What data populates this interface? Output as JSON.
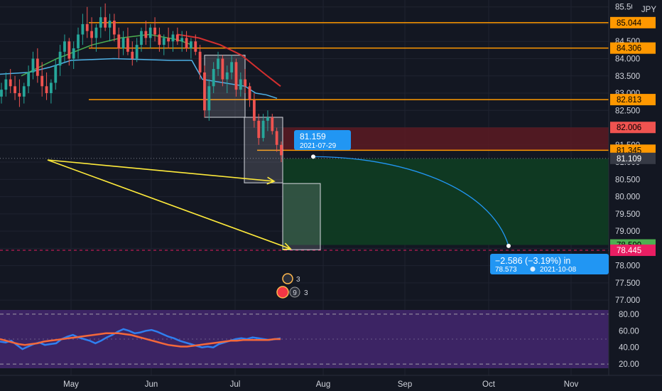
{
  "currency_label": "JPY",
  "colors": {
    "background": "#131722",
    "up_candle": "#26a69a",
    "down_candle": "#ef5350",
    "orange_level": "#ff9800",
    "stop_zone": "#5c1a22",
    "target_zone": "#0f3b23",
    "rsi_panel": "#3c2464",
    "cyan_line": "#4fb3e8",
    "red_ma": "#d32f2f",
    "green_ma": "#4caf50",
    "arrows": "#ffeb3b",
    "projection": "#2196f3",
    "rsi_blue": "#2f7ff0",
    "rsi_orange": "#f4683a"
  },
  "chart_data": {
    "type": "candlestick",
    "price_axis_ticks": [
      "85.500",
      "85.000",
      "84.500",
      "84.000",
      "83.500",
      "83.000",
      "82.500",
      "82.000",
      "81.500",
      "81.000",
      "80.500",
      "80.000",
      "79.500",
      "79.000",
      "78.500",
      "78.000",
      "77.500",
      "77.000"
    ],
    "price_range": [
      76.9,
      85.7
    ],
    "x_axis_labels": [
      "May",
      "Jun",
      "Jul",
      "Aug",
      "Sep",
      "Oct",
      "Nov"
    ],
    "horizontal_levels": [
      85.044,
      84.306,
      82.813,
      81.345
    ],
    "price_badges": [
      {
        "label": "85.044",
        "value": 85.044,
        "color": "#ff9800",
        "text_color": "#000000"
      },
      {
        "label": "84.306",
        "value": 84.306,
        "color": "#ff9800",
        "text_color": "#000000"
      },
      {
        "label": "82.813",
        "value": 82.813,
        "color": "#ff9800",
        "text_color": "#000000"
      },
      {
        "label": "82.006",
        "value": 82.006,
        "color": "#ef5350",
        "text_color": "#000000"
      },
      {
        "label": "81.345",
        "value": 81.345,
        "color": "#ff9800",
        "text_color": "#000000"
      },
      {
        "label": "81.109",
        "value": 81.109,
        "color": "#363a45",
        "text_color": "#ffffff"
      },
      {
        "label": "78.599",
        "value": 78.599,
        "color": "#4caf50",
        "text_color": "#000000"
      },
      {
        "label": "78.445",
        "value": 78.445,
        "color": "#e91e63",
        "text_color": "#ffffff"
      }
    ],
    "candles": [
      [
        82.9,
        83.3,
        82.7,
        83.1
      ],
      [
        83.1,
        83.6,
        82.9,
        83.4
      ],
      [
        83.4,
        83.7,
        83.0,
        83.2
      ],
      [
        83.2,
        83.5,
        82.8,
        83.0
      ],
      [
        83.0,
        83.4,
        82.6,
        82.9
      ],
      [
        82.9,
        83.3,
        82.7,
        83.2
      ],
      [
        83.2,
        83.8,
        83.0,
        83.6
      ],
      [
        83.6,
        84.2,
        83.4,
        84.0
      ],
      [
        84.0,
        84.3,
        83.3,
        83.5
      ],
      [
        83.5,
        83.9,
        82.9,
        83.2
      ],
      [
        83.2,
        83.6,
        82.8,
        83.0
      ],
      [
        83.0,
        83.4,
        82.7,
        83.3
      ],
      [
        83.3,
        84.0,
        83.1,
        83.8
      ],
      [
        83.8,
        84.4,
        83.5,
        84.2
      ],
      [
        84.2,
        84.7,
        83.9,
        84.5
      ],
      [
        84.5,
        84.6,
        83.8,
        84.0
      ],
      [
        84.0,
        84.5,
        83.7,
        84.3
      ],
      [
        84.3,
        84.9,
        84.0,
        84.7
      ],
      [
        84.7,
        85.3,
        84.4,
        85.0
      ],
      [
        85.0,
        85.5,
        84.6,
        84.8
      ],
      [
        84.8,
        85.2,
        84.3,
        84.6
      ],
      [
        84.6,
        85.0,
        84.2,
        84.9
      ],
      [
        84.9,
        85.5,
        84.6,
        85.2
      ],
      [
        85.2,
        85.6,
        84.8,
        84.9
      ],
      [
        84.9,
        85.3,
        84.5,
        85.1
      ],
      [
        85.1,
        85.3,
        84.5,
        84.7
      ],
      [
        84.7,
        84.9,
        84.0,
        84.3
      ],
      [
        84.3,
        84.8,
        84.1,
        84.6
      ],
      [
        84.6,
        84.9,
        84.1,
        84.2
      ],
      [
        84.2,
        84.5,
        83.8,
        84.0
      ],
      [
        84.0,
        84.6,
        83.9,
        84.4
      ],
      [
        84.4,
        84.9,
        84.2,
        84.8
      ],
      [
        84.8,
        85.1,
        84.4,
        84.6
      ],
      [
        84.6,
        85.0,
        84.3,
        84.9
      ],
      [
        84.9,
        85.2,
        84.5,
        84.7
      ],
      [
        84.7,
        84.9,
        84.2,
        84.4
      ],
      [
        84.4,
        84.7,
        84.1,
        84.6
      ],
      [
        84.6,
        84.9,
        84.3,
        84.5
      ],
      [
        84.5,
        84.8,
        84.2,
        84.7
      ],
      [
        84.7,
        84.9,
        84.4,
        84.5
      ],
      [
        84.5,
        84.8,
        84.2,
        84.6
      ],
      [
        84.6,
        84.8,
        84.2,
        84.3
      ],
      [
        84.3,
        84.6,
        84.0,
        84.5
      ],
      [
        84.5,
        84.7,
        84.1,
        84.2
      ],
      [
        84.2,
        84.4,
        83.4,
        83.6
      ],
      [
        83.6,
        83.8,
        82.3,
        82.5
      ],
      [
        82.5,
        83.4,
        82.2,
        83.2
      ],
      [
        83.2,
        83.9,
        83.0,
        83.7
      ],
      [
        83.7,
        84.2,
        83.5,
        84.0
      ],
      [
        84.0,
        84.1,
        83.2,
        83.4
      ],
      [
        83.4,
        83.8,
        83.0,
        83.6
      ],
      [
        83.6,
        84.1,
        83.4,
        83.9
      ],
      [
        83.9,
        84.0,
        82.9,
        83.1
      ],
      [
        83.1,
        83.6,
        82.9,
        83.4
      ],
      [
        83.4,
        83.7,
        83.0,
        83.2
      ],
      [
        83.2,
        83.3,
        82.6,
        82.8
      ],
      [
        82.8,
        83.0,
        82.0,
        82.2
      ],
      [
        82.2,
        82.4,
        81.5,
        81.7
      ],
      [
        81.7,
        82.4,
        81.6,
        82.2
      ],
      [
        82.2,
        82.5,
        81.9,
        82.3
      ],
      [
        82.3,
        82.4,
        81.8,
        81.9
      ],
      [
        81.9,
        82.0,
        81.3,
        81.5
      ],
      [
        81.5,
        81.6,
        81.0,
        81.2
      ]
    ],
    "trade_setup": {
      "entry": 81.345,
      "stop_loss": 82.006,
      "take_profit": 78.599
    },
    "projection_start": {
      "price": "81.159",
      "date": "2021-07-29"
    },
    "projection_end": {
      "change": "−2.586 (−3.19%) in",
      "price": "78.573",
      "date": "2021-10-08"
    },
    "event_badges": [
      "3",
      "9",
      "3"
    ],
    "rsi_panel": {
      "ticks": [
        "80.00",
        "60.00",
        "40.00",
        "20.00"
      ],
      "range": [
        15,
        85
      ],
      "levels": [
        80,
        20
      ],
      "series": [
        {
          "values": [
            47,
            46,
            48,
            43,
            38,
            41,
            44,
            46,
            43,
            44,
            45,
            50,
            53,
            55,
            52,
            50,
            48,
            45,
            48,
            52,
            55,
            59,
            62,
            60,
            57,
            58,
            60,
            61,
            59,
            56,
            53,
            51,
            48,
            46,
            44,
            42,
            40,
            41,
            40,
            44,
            46,
            48,
            50,
            51,
            50,
            52,
            51,
            50,
            49,
            50,
            51
          ]
        },
        {
          "values": [
            50,
            48,
            46,
            44,
            43,
            44,
            45,
            47,
            48,
            49,
            50,
            51,
            52,
            53,
            54,
            55,
            56,
            57,
            57,
            57,
            56,
            55,
            53,
            51,
            49,
            47,
            45,
            43,
            42,
            41,
            41,
            42,
            43,
            44,
            45,
            46,
            47,
            48,
            48,
            49,
            49,
            49,
            49,
            49,
            50,
            50
          ]
        }
      ]
    }
  }
}
